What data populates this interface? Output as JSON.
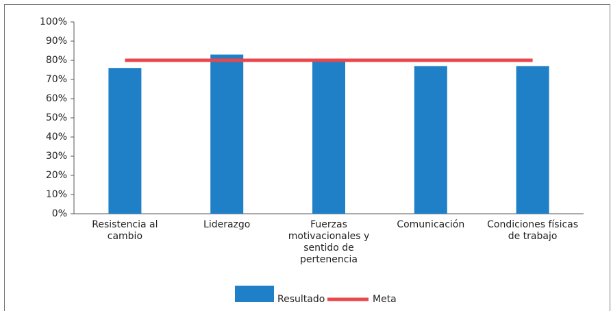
{
  "chart_data": {
    "type": "bar",
    "categories": [
      "Resistencia al cambio",
      "Liderazgo",
      "Fuerzas motivacionales y sentido de pertenencia",
      "Comunicación",
      "Condiciones físicas de trabajo"
    ],
    "series": [
      {
        "name": "Resultado",
        "type": "bar",
        "color": "#1f80c8",
        "values": [
          76,
          83,
          80,
          77,
          77
        ]
      },
      {
        "name": "Meta",
        "type": "line",
        "color": "#e8474c",
        "values": [
          80,
          80,
          80,
          80,
          80
        ]
      }
    ],
    "ylim": [
      0,
      100
    ],
    "yticks": [
      {
        "value": 0,
        "label": "0%"
      },
      {
        "value": 10,
        "label": "10%"
      },
      {
        "value": 20,
        "label": "20%"
      },
      {
        "value": 30,
        "label": "30%"
      },
      {
        "value": 40,
        "label": "40%"
      },
      {
        "value": 50,
        "label": "50%"
      },
      {
        "value": 60,
        "label": "60%"
      },
      {
        "value": 70,
        "label": "70%"
      },
      {
        "value": 80,
        "label": "80%"
      },
      {
        "value": 90,
        "label": "90%"
      },
      {
        "value": 100,
        "label": "100%"
      }
    ],
    "grid": false,
    "legend": "bottom"
  }
}
